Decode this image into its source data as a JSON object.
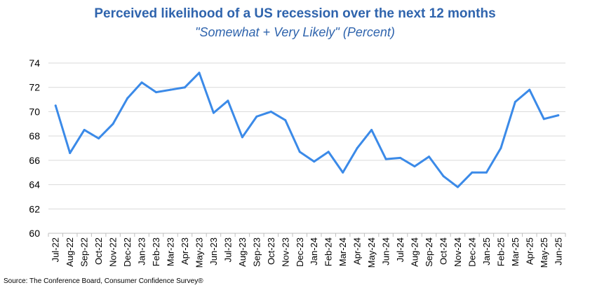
{
  "chart_data": {
    "type": "line",
    "title": "Perceived likelihood of a US recession over the next 12 months",
    "subtitle": "\"Somewhat + Very Likely\" (Percent)",
    "xlabel": "",
    "ylabel": "",
    "ylim": [
      60,
      74
    ],
    "yticks": [
      60,
      62,
      64,
      66,
      68,
      70,
      72,
      74
    ],
    "grid": true,
    "legend": "none",
    "line_color": "#3b8ae8",
    "categories": [
      "Jul-22",
      "Aug-22",
      "Sep-22",
      "Oct-22",
      "Nov-22",
      "Dec-22",
      "Jan-23",
      "Feb-23",
      "Mar-23",
      "Apr-23",
      "May-23",
      "Jun-23",
      "Jul-23",
      "Aug-23",
      "Sep-23",
      "Oct-23",
      "Nov-23",
      "Dec-23",
      "Jan-24",
      "Feb-24",
      "Mar-24",
      "Apr-24",
      "May-24",
      "Jun-24",
      "Jul-24",
      "Aug-24",
      "Sep-24",
      "Oct-24",
      "Nov-24",
      "Dec-24",
      "Jan-25",
      "Feb-25",
      "Mar-25",
      "Apr-25",
      "May-25",
      "Jun-25"
    ],
    "series": [
      {
        "values": [
          70.5,
          66.6,
          68.5,
          67.8,
          69.0,
          71.1,
          72.4,
          71.6,
          71.8,
          72.0,
          73.2,
          69.9,
          70.9,
          67.9,
          69.6,
          70.0,
          69.3,
          66.7,
          65.9,
          66.7,
          65.0,
          67.0,
          68.5,
          66.1,
          66.2,
          65.5,
          66.3,
          64.7,
          63.8,
          65.0,
          65.0,
          67.0,
          70.8,
          71.8,
          69.4,
          69.7
        ]
      }
    ]
  },
  "source": "Source: The Conference Board, Consumer Confidence Survey®"
}
